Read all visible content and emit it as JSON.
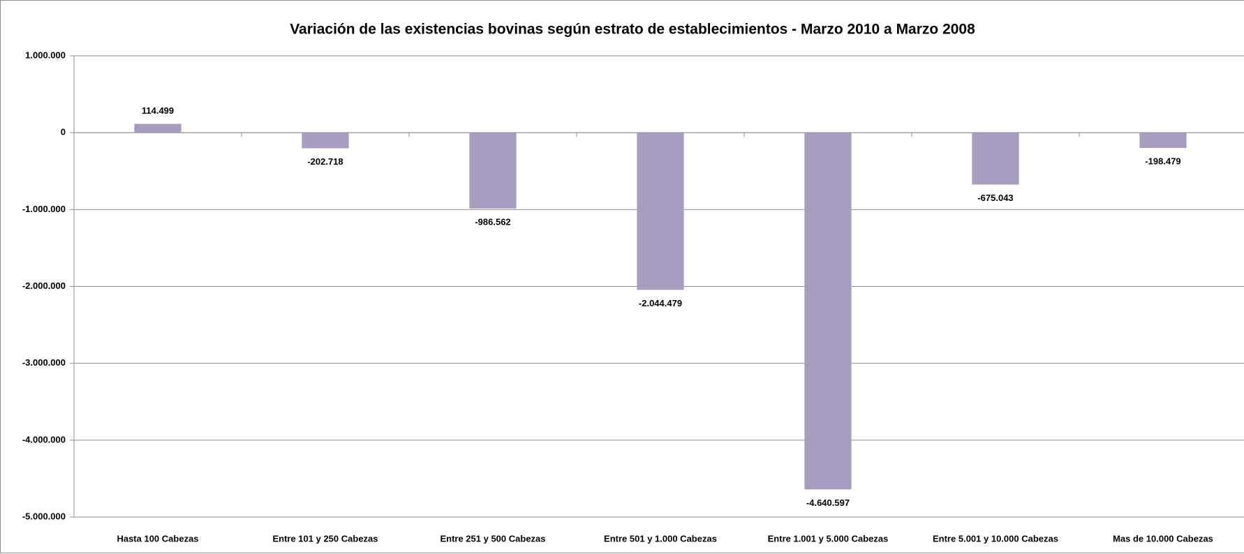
{
  "chart_data": {
    "type": "bar",
    "title": "Variación  de las existencias bovinas según estrato de establecimientos - Marzo 2010 a Marzo 2008",
    "categories": [
      "Hasta 100 Cabezas",
      "Entre 101 y 250 Cabezas",
      "Entre 251 y 500 Cabezas",
      "Entre 501 y 1.000 Cabezas",
      "Entre 1.001 y 5.000 Cabezas",
      "Entre 5.001 y 10.000 Cabezas",
      "Mas de 10.000 Cabezas"
    ],
    "values": [
      114499,
      -202718,
      -986562,
      -2044479,
      -4640597,
      -675043,
      -198479
    ],
    "value_labels": [
      "114.499",
      "-202.718",
      "-986.562",
      "-2.044.479",
      "-4.640.597",
      "-675.043",
      "-198.479"
    ],
    "color": "#a89bc0",
    "ylim": [
      -5000000,
      1000000
    ],
    "yticks": [
      {
        "value": -5000000,
        "label": "-5.000.000"
      },
      {
        "value": -4000000,
        "label": "-4.000.000"
      },
      {
        "value": -3000000,
        "label": "-3.000.000"
      },
      {
        "value": -2000000,
        "label": "-2.000.000"
      },
      {
        "value": -1000000,
        "label": "-1.000.000"
      },
      0,
      {
        "value": 1000000,
        "label": "1.000.000"
      }
    ],
    "grid": true
  }
}
